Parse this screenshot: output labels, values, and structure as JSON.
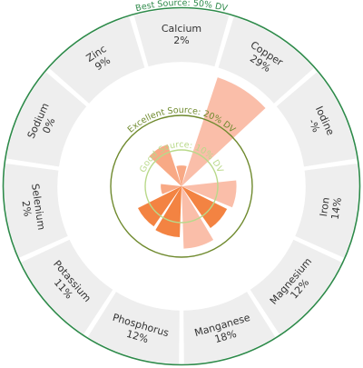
{
  "chart_data": {
    "type": "radial-bar",
    "title": "",
    "nutrients": [
      {
        "name": "Calcium",
        "value_label": "2%",
        "value": 2
      },
      {
        "name": "Copper",
        "value_label": "29%",
        "value": 29
      },
      {
        "name": "Iodine",
        "value_label": "-%",
        "value": null
      },
      {
        "name": "Iron",
        "value_label": "14%",
        "value": 14
      },
      {
        "name": "Magnesium",
        "value_label": "12%",
        "value": 12
      },
      {
        "name": "Manganese",
        "value_label": "18%",
        "value": 18
      },
      {
        "name": "Phosphorus",
        "value_label": "12%",
        "value": 12
      },
      {
        "name": "Potassium",
        "value_label": "11%",
        "value": 11
      },
      {
        "name": "Selenium",
        "value_label": "2%",
        "value": 2
      },
      {
        "name": "Sodium",
        "value_label": "0%",
        "value": 0
      },
      {
        "name": "Zinc",
        "value_label": "9%",
        "value": 9
      }
    ],
    "thresholds": [
      {
        "label": "Good Source: 10% DV",
        "value": 10,
        "color": "#b9d98a"
      },
      {
        "label": "Excellent Source: 20% DV",
        "value": 20,
        "color": "#6f8a2e"
      },
      {
        "label": "Best Source: 50% DV",
        "value": 50,
        "color": "#2e8a4a"
      }
    ],
    "wedge_colors": [
      "#f9b7a0",
      "#f7a078",
      "#f2762e"
    ],
    "axis_max": 50
  }
}
